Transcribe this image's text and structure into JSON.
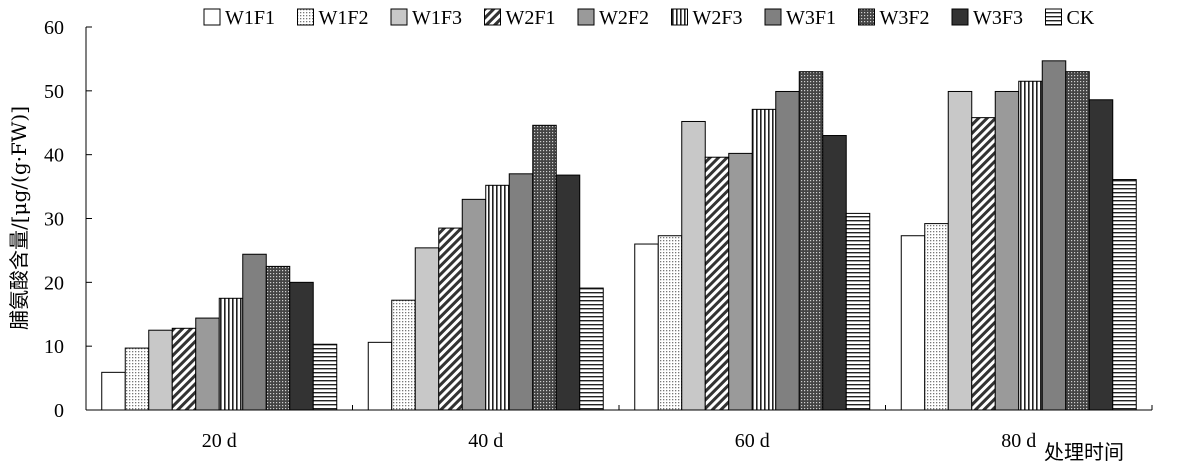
{
  "chart_data": {
    "type": "bar",
    "title": "",
    "ylabel": "脯氨酸含量/[μg/(g·FW)]",
    "xlabel": "处理时间",
    "ylim": [
      0,
      60
    ],
    "yticks": [
      0,
      10,
      20,
      30,
      40,
      50,
      60
    ],
    "grid": false,
    "legend_position": "top",
    "categories": [
      "20 d",
      "40 d",
      "60 d",
      "80 d"
    ],
    "series": [
      {
        "name": "W1F1",
        "pattern": "white",
        "values": [
          5.9,
          10.6,
          26.0,
          27.3
        ]
      },
      {
        "name": "W1F2",
        "pattern": "dots",
        "values": [
          9.7,
          17.2,
          27.3,
          29.2
        ]
      },
      {
        "name": "W1F3",
        "pattern": "lightgray",
        "values": [
          12.5,
          25.4,
          45.2,
          49.9
        ]
      },
      {
        "name": "W2F1",
        "pattern": "diagonal",
        "values": [
          12.8,
          28.5,
          39.6,
          45.8
        ]
      },
      {
        "name": "W2F2",
        "pattern": "gray",
        "values": [
          14.4,
          33.0,
          40.2,
          49.9
        ]
      },
      {
        "name": "W2F3",
        "pattern": "vertical",
        "values": [
          17.5,
          35.2,
          47.1,
          51.5
        ]
      },
      {
        "name": "W3F1",
        "pattern": "midgray",
        "values": [
          24.4,
          37.0,
          49.9,
          54.7
        ]
      },
      {
        "name": "W3F2",
        "pattern": "darkdots",
        "values": [
          22.5,
          44.6,
          53.0,
          53.0
        ]
      },
      {
        "name": "W3F3",
        "pattern": "black",
        "values": [
          20.0,
          36.8,
          43.0,
          48.6
        ]
      },
      {
        "name": "CK",
        "pattern": "horizontal",
        "values": [
          10.3,
          19.1,
          30.8,
          36.1
        ]
      }
    ]
  }
}
